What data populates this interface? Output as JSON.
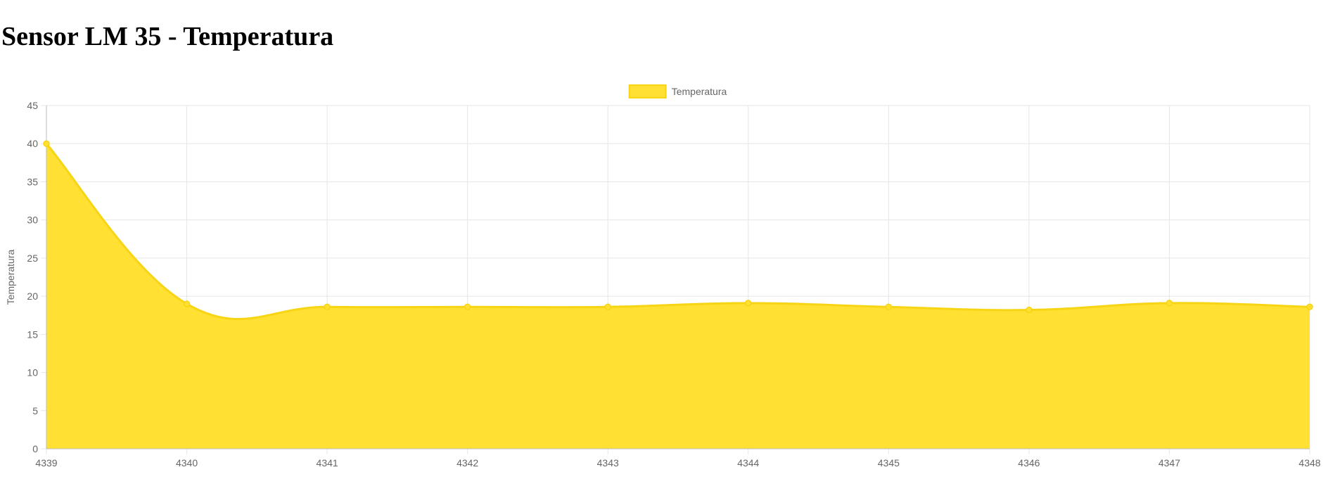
{
  "page": {
    "title": "Sensor LM 35 - Temperatura"
  },
  "colors": {
    "fill": "#ffe033",
    "line": "#f7d514",
    "grid": "#e6e6e6",
    "axis": "#bdbdbd",
    "tick_text": "#666666"
  },
  "chart_data": {
    "type": "area",
    "x": [
      "4339",
      "4340",
      "4341",
      "4342",
      "4343",
      "4344",
      "4345",
      "4346",
      "4347",
      "4348"
    ],
    "series": [
      {
        "name": "Temperatura",
        "values": [
          40.0,
          19.0,
          18.6,
          18.6,
          18.6,
          19.1,
          18.6,
          18.2,
          19.1,
          18.6
        ]
      }
    ],
    "ylabel": "Temperatura",
    "xlabel": "",
    "ylim": [
      0,
      45
    ],
    "yticks": [
      0,
      5,
      10,
      15,
      20,
      25,
      30,
      35,
      40,
      45
    ],
    "grid": true,
    "legend": "top-center"
  }
}
